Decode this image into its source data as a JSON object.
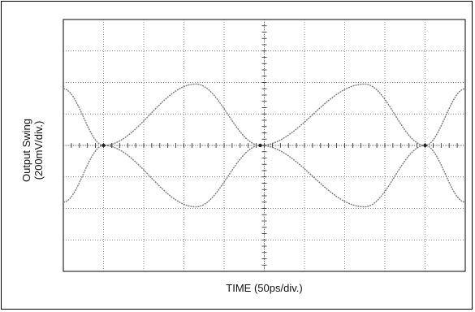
{
  "chart_data": {
    "type": "line",
    "title": "",
    "xlabel": "TIME (50ps/div.)",
    "ylabel_line1": "Output Swing",
    "ylabel_line2": "(200mV/div.)",
    "grid": true,
    "x_divisions": 10,
    "y_divisions": 8,
    "xlim": [
      0,
      10
    ],
    "ylim": [
      -4,
      4
    ],
    "crossings_x": [
      1.0,
      4.9,
      9.0
    ],
    "series": [
      {
        "x": [
          0,
          1.0,
          3.3,
          4.9,
          7.5,
          9.0,
          10.0
        ],
        "y": [
          1.8,
          0.0,
          -1.95,
          0.0,
          1.95,
          0.0,
          -1.8
        ]
      },
      {
        "x": [
          0,
          1.0,
          3.3,
          4.9,
          7.5,
          9.0,
          10.0
        ],
        "y": [
          -1.8,
          0.0,
          1.95,
          0.0,
          -1.95,
          0.0,
          1.8
        ]
      }
    ],
    "line_color": "#7a7a7a"
  }
}
